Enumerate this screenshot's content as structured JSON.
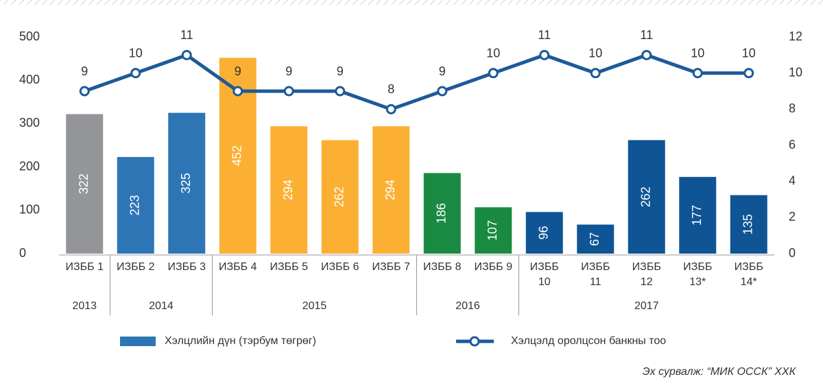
{
  "chart_data": {
    "type": "bar_line",
    "categories": [
      "ИЗББ 1",
      "ИЗББ 2",
      "ИЗББ 3",
      "ИЗББ 4",
      "ИЗББ 5",
      "ИЗББ 6",
      "ИЗББ 7",
      "ИЗББ 8",
      "ИЗББ 9",
      "ИЗББ 10",
      "ИЗББ 11",
      "ИЗББ 12",
      "ИЗББ 13*",
      "ИЗББ 14*"
    ],
    "groups": [
      {
        "label": "2013",
        "count": 1
      },
      {
        "label": "2014",
        "count": 2
      },
      {
        "label": "2015",
        "count": 4
      },
      {
        "label": "2016",
        "count": 2
      },
      {
        "label": "2017",
        "count": 5
      }
    ],
    "series": [
      {
        "name": "Хэлцлийн дүн (тэрбум төгрөг)",
        "type": "bar",
        "color": "#2e75b6",
        "colors": [
          "#939598",
          "#2e75b6",
          "#2e75b6",
          "#fbb034",
          "#fbb034",
          "#fbb034",
          "#fbb034",
          "#1a8a43",
          "#1a8a43",
          "#0f5596",
          "#0f5596",
          "#0f5596",
          "#0f5596",
          "#0f5596"
        ],
        "values": [
          322,
          223,
          325,
          452,
          294,
          262,
          294,
          186,
          107,
          96,
          67,
          262,
          177,
          135
        ]
      },
      {
        "name": "Хэлцэлд оролцсон банкны тоо",
        "type": "line",
        "axis": "y2",
        "color": "#1d5a99",
        "values": [
          9,
          10,
          11,
          9,
          9,
          9,
          8,
          9,
          10,
          11,
          10,
          11,
          10,
          10
        ]
      }
    ],
    "ylim": [
      0,
      500
    ],
    "yticks": [
      0,
      100,
      200,
      300,
      400,
      500
    ],
    "y2lim": [
      0,
      12
    ],
    "y2ticks": [
      0,
      2,
      4,
      6,
      8,
      10,
      12
    ],
    "source": "Эх сурвалж: “МИК ОССК” ХХК"
  }
}
